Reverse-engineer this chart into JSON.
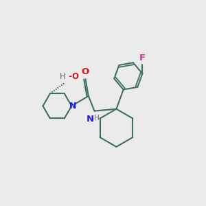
{
  "bg_color": "#ebebeb",
  "bond_color": "#3d7065",
  "N_color": "#1a1aee",
  "O_color": "#dd1111",
  "F_color": "#cc33aa",
  "H_color": "#666666",
  "line_width": 1.5,
  "figsize": [
    3.0,
    3.0
  ],
  "dpi": 100,
  "xlim": [
    -4.8,
    5.5
  ],
  "ylim": [
    -2.5,
    4.8
  ]
}
